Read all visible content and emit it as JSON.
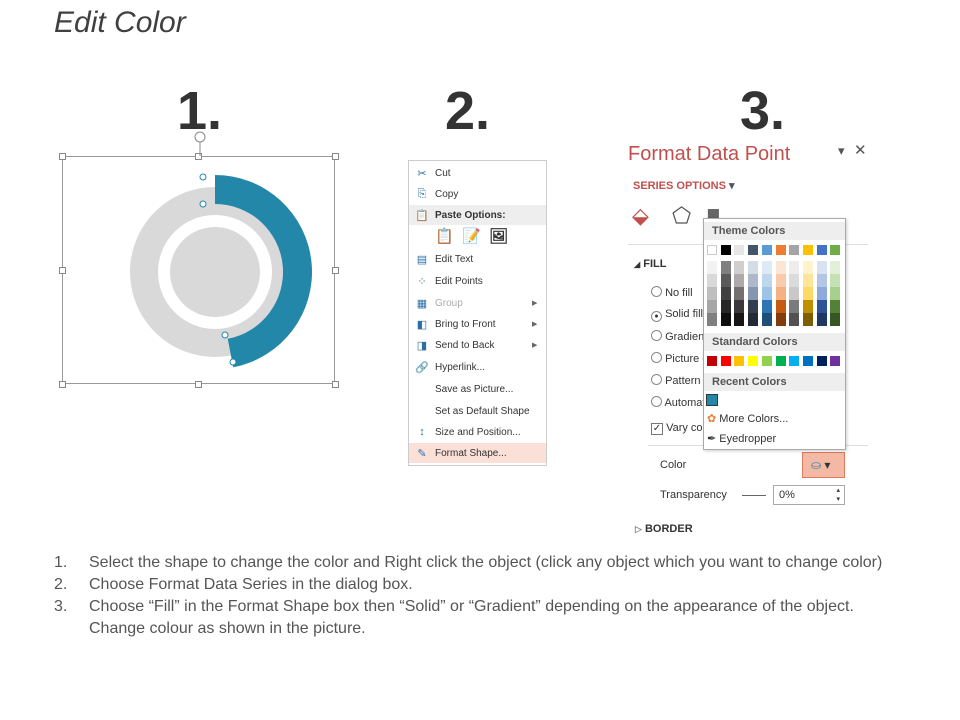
{
  "title": "Edit Color",
  "steps": [
    "1.",
    "2.",
    "3."
  ],
  "donut": {
    "accent": "#2387aa",
    "ring": "#d9d9d9",
    "selected_fraction": 0.47
  },
  "context_menu": {
    "items": [
      {
        "icon": "scissors-icon",
        "glyph": "✂",
        "label": "Cut"
      },
      {
        "icon": "copy-icon",
        "glyph": "⎘",
        "label": "Copy"
      },
      {
        "icon": "paste-icon",
        "glyph": "📋",
        "label": "Paste Options:",
        "header": true
      },
      {
        "icon": "edit-text-icon",
        "glyph": "▤",
        "label": "Edit Text"
      },
      {
        "icon": "edit-points-icon",
        "glyph": "⁘",
        "label": "Edit Points"
      },
      {
        "icon": "group-icon",
        "glyph": "▦",
        "label": "Group",
        "disabled": true,
        "submenu": true
      },
      {
        "icon": "bring-to-front-icon",
        "glyph": "◧",
        "label": "Bring to Front",
        "submenu": true
      },
      {
        "icon": "send-to-back-icon",
        "glyph": "◨",
        "label": "Send to Back",
        "submenu": true
      },
      {
        "icon": "hyperlink-icon",
        "glyph": "🔗",
        "label": "Hyperlink..."
      },
      {
        "icon": "",
        "glyph": "",
        "label": "Save as Picture..."
      },
      {
        "icon": "",
        "glyph": "",
        "label": "Set as Default Shape"
      },
      {
        "icon": "size-position-icon",
        "glyph": "↕",
        "label": "Size and Position..."
      },
      {
        "icon": "format-shape-icon",
        "glyph": "✎",
        "label": "Format Shape...",
        "highlighted": true
      }
    ]
  },
  "format_panel": {
    "title": "Format Data Point",
    "series_options": "SERIES OPTIONS",
    "fill_header": "FILL",
    "options": [
      "No fill",
      "Solid fill",
      "Gradient fill",
      "Picture or texture fill",
      "Pattern fill",
      "Automatic"
    ],
    "selected_option": 1,
    "vary_colors": "Vary colors by point",
    "color_label": "Color",
    "transparency_label": "Transparency",
    "transparency_value": "0%",
    "border_header": "BORDER",
    "accent": "#c0504d"
  },
  "color_dropdown": {
    "theme_label": "Theme Colors",
    "theme_colors": [
      "#ffffff",
      "#000000",
      "#e7e6e6",
      "#44546a",
      "#5b9bd5",
      "#ed7d31",
      "#a5a5a5",
      "#ffc000",
      "#4472c4",
      "#70ad47"
    ],
    "theme_shades": [
      [
        "#f2f2f2",
        "#d9d9d9",
        "#bfbfbf",
        "#a6a6a6",
        "#808080"
      ],
      [
        "#7f7f7f",
        "#595959",
        "#404040",
        "#262626",
        "#0d0d0d"
      ],
      [
        "#d0cece",
        "#aeaaaa",
        "#757070",
        "#3a3838",
        "#171616"
      ],
      [
        "#d6dce4",
        "#adb9ca",
        "#8496b0",
        "#333f4f",
        "#222a35"
      ],
      [
        "#deebf6",
        "#bdd7ee",
        "#9dc3e6",
        "#2e75b5",
        "#1f4e79"
      ],
      [
        "#fbe5d5",
        "#f7cbac",
        "#f4b183",
        "#c55a11",
        "#833c0b"
      ],
      [
        "#ededed",
        "#dbdbdb",
        "#c9c9c9",
        "#7b7b7b",
        "#525252"
      ],
      [
        "#fff2cc",
        "#fee599",
        "#ffd965",
        "#bf9000",
        "#7f6000"
      ],
      [
        "#d9e2f3",
        "#b4c6e7",
        "#8eaadb",
        "#2f5496",
        "#1f3864"
      ],
      [
        "#e2efd9",
        "#c5e0b3",
        "#a8d08d",
        "#538135",
        "#375623"
      ]
    ],
    "standard_label": "Standard Colors",
    "standard_colors": [
      "#c00000",
      "#ff0000",
      "#ffc000",
      "#ffff00",
      "#92d050",
      "#00b050",
      "#00b0f0",
      "#0070c0",
      "#002060",
      "#7030a0"
    ],
    "recent_label": "Recent Colors",
    "recent_colors": [
      "#2387aa"
    ],
    "more_colors": "More Colors...",
    "eyedropper": "Eyedropper"
  },
  "instructions": [
    {
      "n": "1.",
      "text": "Select the shape to change the color and Right click the object (click any object which you want to change color)"
    },
    {
      "n": "2.",
      "text": "Choose Format Data Series in the dialog box."
    },
    {
      "n": "3.",
      "text": "Choose “Fill” in the Format Shape box then “Solid” or “Gradient” depending on the appearance of the object. Change colour as shown in the picture."
    }
  ]
}
